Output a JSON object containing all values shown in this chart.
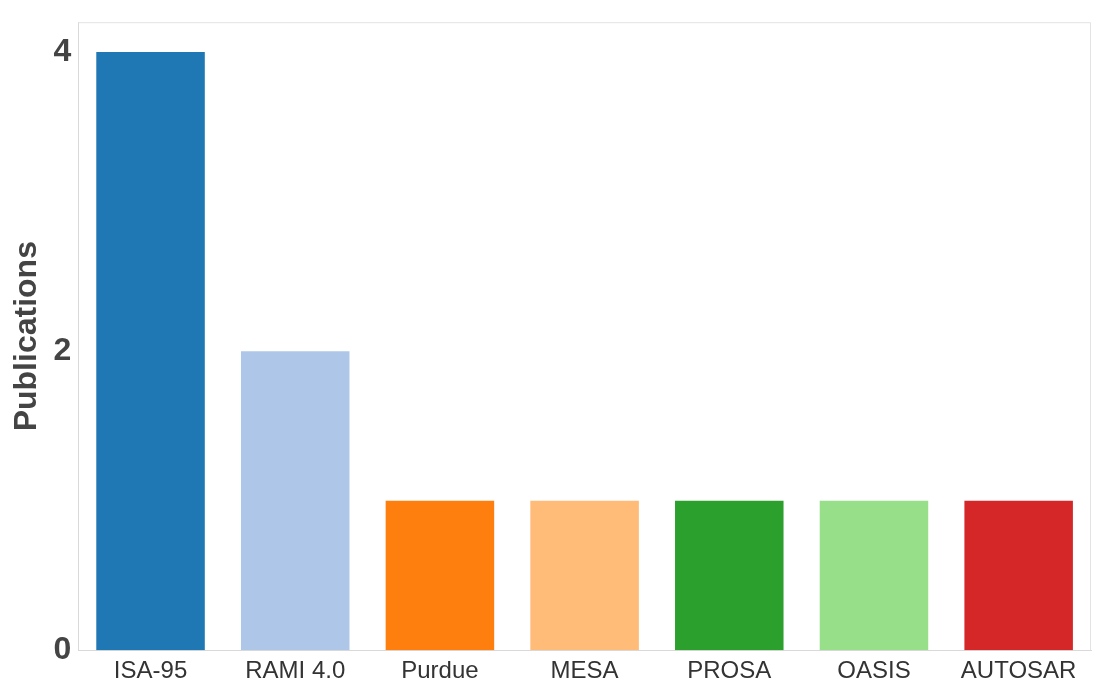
{
  "chart_data": {
    "type": "bar",
    "ylabel": "Publications",
    "categories": [
      "ISA-95",
      "RAMI 4.0",
      "Purdue",
      "MESA",
      "PROSA",
      "OASIS",
      "AUTOSAR"
    ],
    "values": [
      4,
      2,
      1,
      1,
      1,
      1,
      1
    ],
    "colors": [
      "#1f77b4",
      "#aec7e8",
      "#ff7f0e",
      "#ffbb78",
      "#2ca02c",
      "#98df8a",
      "#d62728"
    ],
    "ylim": [
      0,
      4.2
    ],
    "yticks": [
      0,
      2,
      4
    ],
    "grid": false,
    "legend": false
  }
}
